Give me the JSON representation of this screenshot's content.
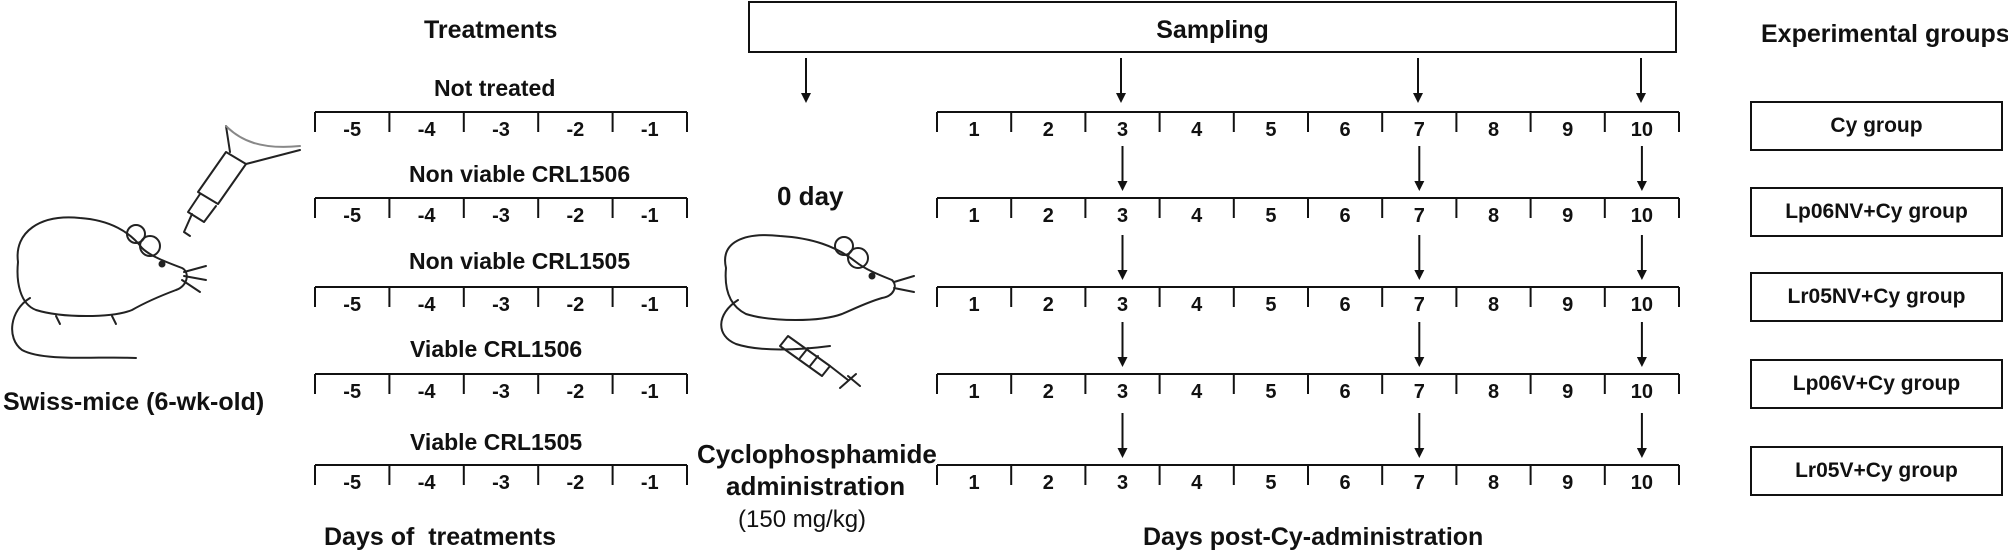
{
  "headers": {
    "treatments": "Treatments",
    "sampling": "Sampling",
    "experimental_groups": "Experimental groups",
    "days_of_treatments": "Days of  treatments",
    "days_post": "Days post-Cy-administration"
  },
  "mouse_label": "Swiss-mice  (6-wk-old)",
  "zero_day": "0 day",
  "cyclophosphamide": {
    "line1": "Cyclophosphamide",
    "line2": "administration",
    "dose": "(150 mg/kg)"
  },
  "treatments": [
    "Not treated",
    "Non viable CRL1506",
    "Non viable CRL1505",
    "Viable CRL1506",
    "Viable CRL1505"
  ],
  "pre_days": [
    "-5",
    "-4",
    "-3",
    "-2",
    "-1"
  ],
  "post_days": [
    "1",
    "2",
    "3",
    "4",
    "5",
    "6",
    "7",
    "8",
    "9",
    "10"
  ],
  "sampling_days": [
    "3",
    "7",
    "10"
  ],
  "groups": [
    "Cy group",
    "Lp06NV+Cy group",
    "Lr05NV+Cy group",
    "Lp06V+Cy group",
    "Lr05V+Cy group"
  ]
}
